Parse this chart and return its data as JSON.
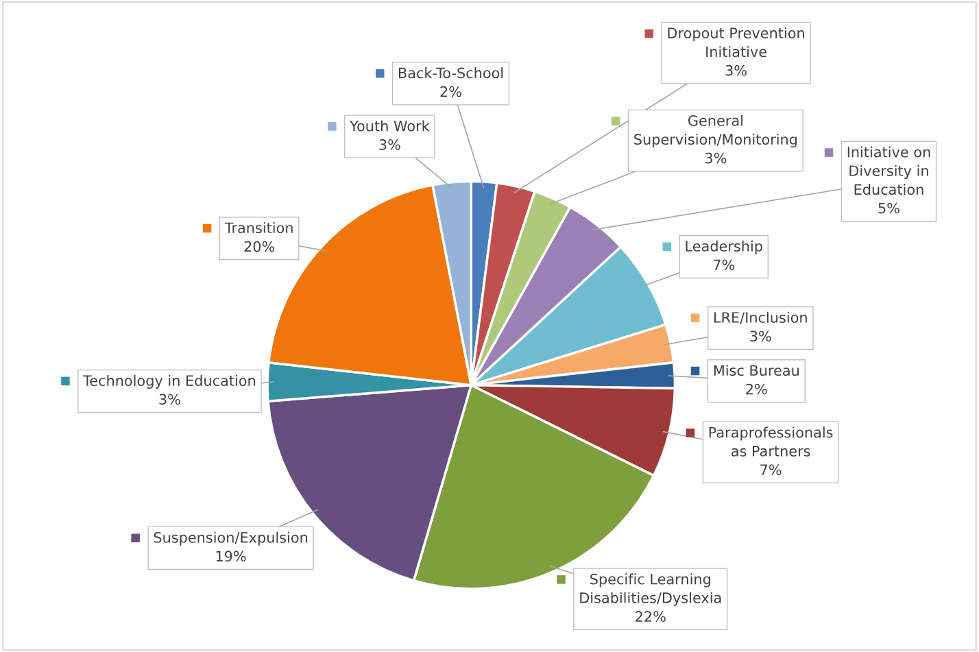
{
  "chart_data": {
    "type": "pie",
    "categories": [
      "Back-To-School",
      "Dropout Prevention\nInitiative",
      "General\nSupervision/Monitoring",
      "Initiative on\nDiversity in\nEducation",
      "Leadership",
      "LRE/Inclusion",
      "Misc Bureau",
      "Paraprofessionals\nas Partners",
      "Specific Learning\nDisabilities/Dyslexia",
      "Suspension/Expulsion",
      "Technology in Education",
      "Transition",
      "Youth Work"
    ],
    "values": [
      2,
      3,
      3,
      5,
      7,
      3,
      2,
      7,
      22,
      19,
      3,
      20,
      3
    ],
    "value_labels": [
      "2%",
      "3%",
      "3%",
      "5%",
      "7%",
      "3%",
      "2%",
      "7%",
      "22%",
      "19%",
      "3%",
      "20%",
      "3%"
    ],
    "colors": [
      "#4a7ebb",
      "#c0504d",
      "#aec97a",
      "#9a80b5",
      "#6fbdd1",
      "#f7a96a",
      "#2f5f97",
      "#9e3a38",
      "#7f9f3f",
      "#664f80",
      "#3591a5",
      "#f0760c",
      "#95b3d7"
    ],
    "legend": "right"
  }
}
